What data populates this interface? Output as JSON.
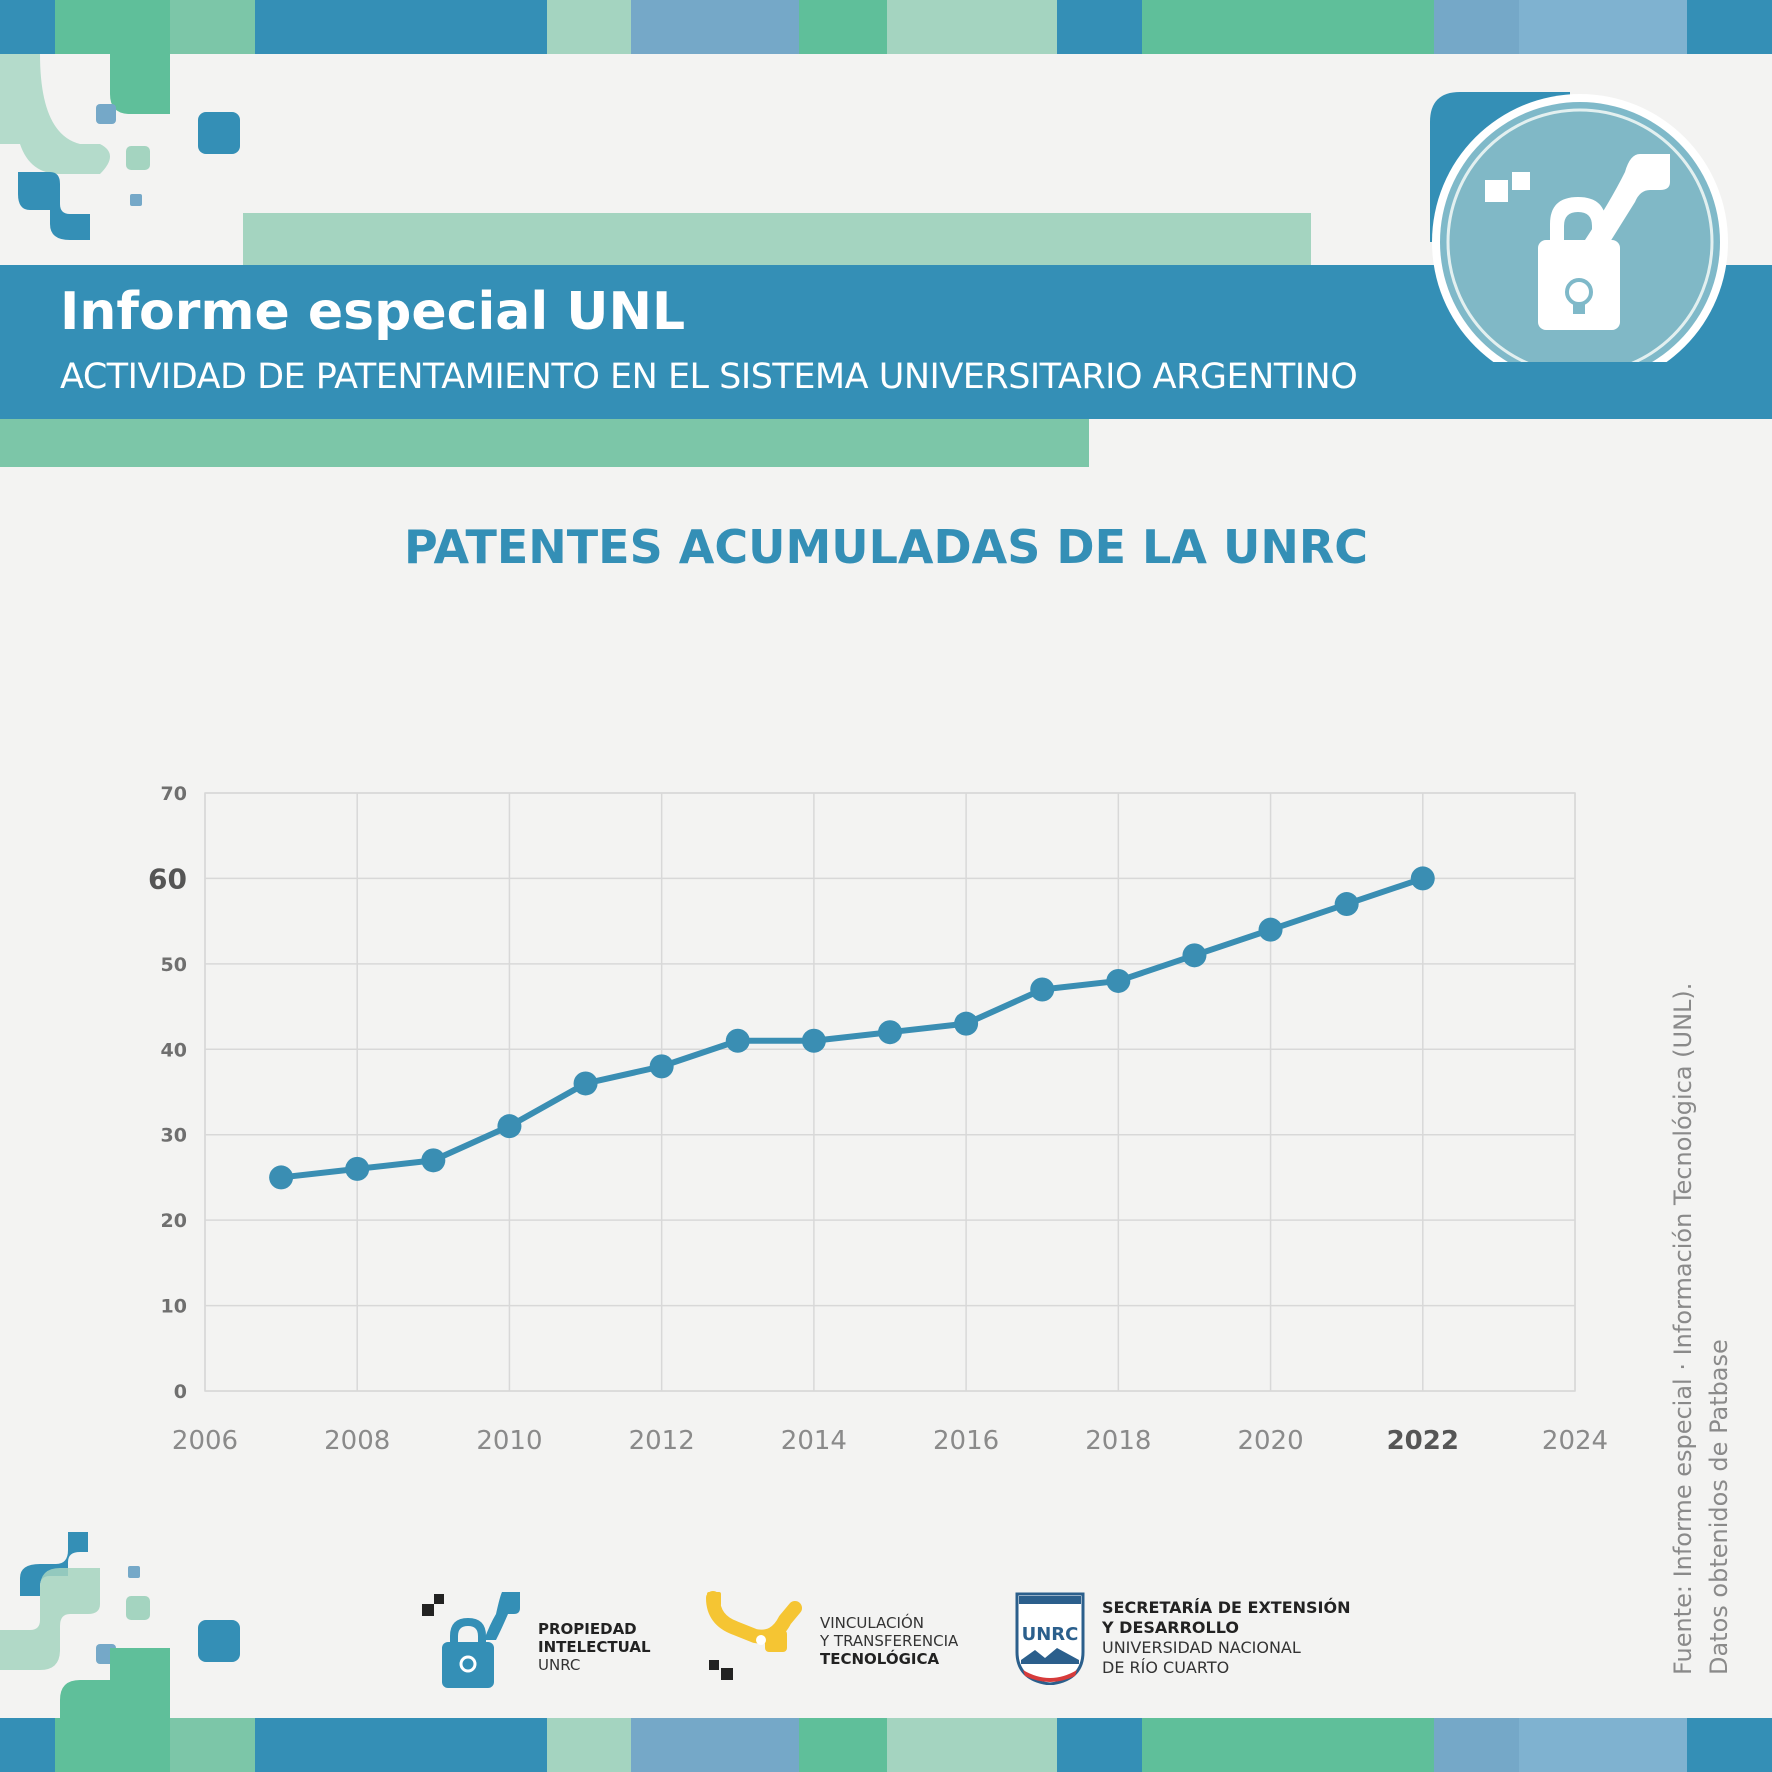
{
  "header": {
    "title": "Informe especial UNL",
    "subtitle": "ACTIVIDAD DE PATENTAMIENTO EN EL SISTEMA UNIVERSITARIO ARGENTINO"
  },
  "colors": {
    "primary_blue": "#348fb6",
    "green": "#5fbf9a",
    "light_green": "#a4d4c0",
    "light_blue": "#75a8c8",
    "line": "#3a8eb3",
    "grid": "#d8d8d8",
    "axis_text": "#6f6f6f"
  },
  "logos": {
    "propiedad": {
      "line1": "PROPIEDAD",
      "line2": "INTELECTUAL",
      "line3": "UNRC",
      "icon": "padlock-bulb-icon"
    },
    "vinculacion": {
      "line1": "VINCULACIÓN",
      "line2": "Y TRANSFERENCIA",
      "line3": "TECNOLÓGICA",
      "icon": "network-nodes-icon"
    },
    "unrc": {
      "badge": "UNRC",
      "line1": "SECRETARÍA DE EXTENSIÓN",
      "line2": "Y DESARROLLO",
      "line3": "UNIVERSIDAD NACIONAL",
      "line4": "DE RÍO CUARTO",
      "icon": "unrc-shield-icon"
    }
  },
  "source": {
    "line1": "Fuente: Informe especial · Información Tecnológica (UNL).",
    "line2": "Datos obtenidos de Patbase"
  },
  "chart_data": {
    "type": "line",
    "title": "PATENTES ACUMULADAS DE LA UNRC",
    "xlabel": "",
    "ylabel": "",
    "x": [
      2007,
      2008,
      2009,
      2010,
      2011,
      2012,
      2013,
      2014,
      2015,
      2016,
      2017,
      2018,
      2019,
      2020,
      2021,
      2022
    ],
    "series": [
      {
        "values": [
          25,
          26,
          27,
          31,
          36,
          38,
          41,
          41,
          42,
          43,
          47,
          48,
          51,
          54,
          57,
          60
        ]
      }
    ],
    "xlim": [
      2006,
      2024
    ],
    "ylim": [
      0,
      70
    ],
    "x_ticks": [
      "2006",
      "2008",
      "2010",
      "2012",
      "2014",
      "2016",
      "2018",
      "2020",
      "2022",
      "2024"
    ],
    "y_ticks": [
      "0",
      "10",
      "20",
      "30",
      "40",
      "50",
      "60",
      "70"
    ],
    "highlight_x_tick": "2022",
    "highlight_y_tick": "60",
    "grid": true,
    "legend": "none"
  }
}
